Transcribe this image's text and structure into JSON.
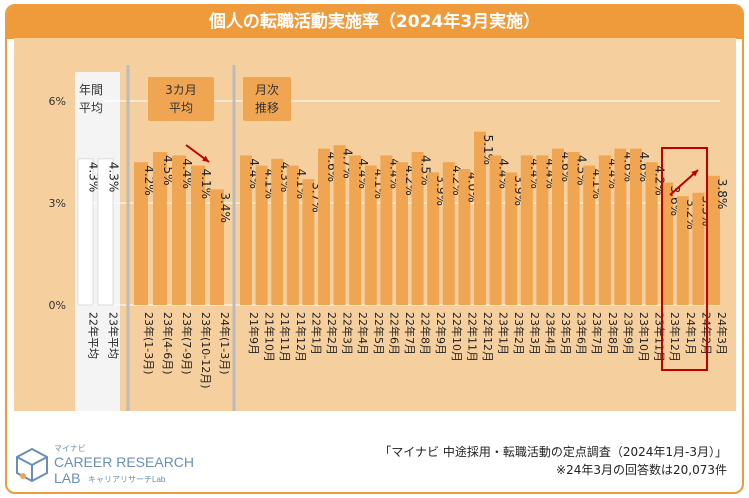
{
  "chart_data": {
    "type": "bar",
    "title": "個人の転職活動実施率（2024年3月実施）",
    "yticks": [
      "6%",
      "3%",
      "0%"
    ],
    "ylim": [
      0,
      6
    ],
    "colors": {
      "accent": "#ef9a3b",
      "bar": "#f0a553",
      "bar_light": "#f6cf9f",
      "highlight": "#c00000",
      "annual_bg": "#f4f4f4"
    },
    "groups": [
      {
        "label": "年間平均",
        "categories": [
          "22年平均",
          "23年平均"
        ],
        "values": [
          4.3,
          4.3
        ],
        "labels": [
          "4.3%",
          "4.3%"
        ]
      },
      {
        "label": "3カ月平均",
        "categories": [
          "23年(1-3月)",
          "23年(4-6月)",
          "23年(7-9月)",
          "23年(10-12月)",
          "24年(1-3月)"
        ],
        "values": [
          4.2,
          4.5,
          4.4,
          4.1,
          3.4
        ],
        "labels": [
          "4.2%",
          "4.5%",
          "4.4%",
          "4.1%",
          "3.4%"
        ]
      },
      {
        "label": "月次推移",
        "categories": [
          "21年9月",
          "21年10月",
          "21年11月",
          "21年12月",
          "22年1月",
          "22年2月",
          "22年3月",
          "22年4月",
          "22年5月",
          "22年6月",
          "22年7月",
          "22年8月",
          "22年9月",
          "22年10月",
          "22年11月",
          "22年12月",
          "23年1月",
          "23年2月",
          "23年3月",
          "23年4月",
          "23年5月",
          "23年6月",
          "23年7月",
          "23年8月",
          "23年9月",
          "23年10月",
          "23年11月",
          "23年12月",
          "24年1月",
          "24年2月",
          "24年3月"
        ],
        "values": [
          4.4,
          4.1,
          4.3,
          4.1,
          3.7,
          4.6,
          4.7,
          4.4,
          4.1,
          4.4,
          4.2,
          4.5,
          3.9,
          4.2,
          4.0,
          5.1,
          4.4,
          3.9,
          4.4,
          4.4,
          4.6,
          4.5,
          4.1,
          4.4,
          4.6,
          4.6,
          4.2,
          3.6,
          3.2,
          3.3,
          3.8
        ],
        "labels": [
          "4.4%",
          "4.1%",
          "4.3%",
          "4.1%",
          "3.7%",
          "4.6%",
          "4.7%",
          "4.4%",
          "4.1%",
          "4.4%",
          "4.2%",
          "4.5%",
          "3.9%",
          "4.2%",
          "4.0%",
          "5.1%",
          "4.4%",
          "3.9%",
          "4.4%",
          "4.4%",
          "4.6%",
          "4.5%",
          "4.1%",
          "4.4%",
          "4.6%",
          "4.6%",
          "4.2%",
          "3.6%",
          "3.2%",
          "3.3%",
          "3.8%"
        ]
      }
    ]
  },
  "group_labels": {
    "annual": [
      "年間",
      "平均"
    ],
    "quarter": [
      "3カ月",
      "平均"
    ],
    "monthly": [
      "月次",
      "推移"
    ]
  },
  "footer": {
    "source": "「マイナビ 中途採用・転職活動の定点調査（2024年1月-3月）」",
    "note": "※24年3月の回答数は20,073件"
  },
  "logo": {
    "small": "マイナビ",
    "main1": "CAREER RESEARCH",
    "main2": "LAB",
    "sub": "キャリアリサーチLab"
  }
}
